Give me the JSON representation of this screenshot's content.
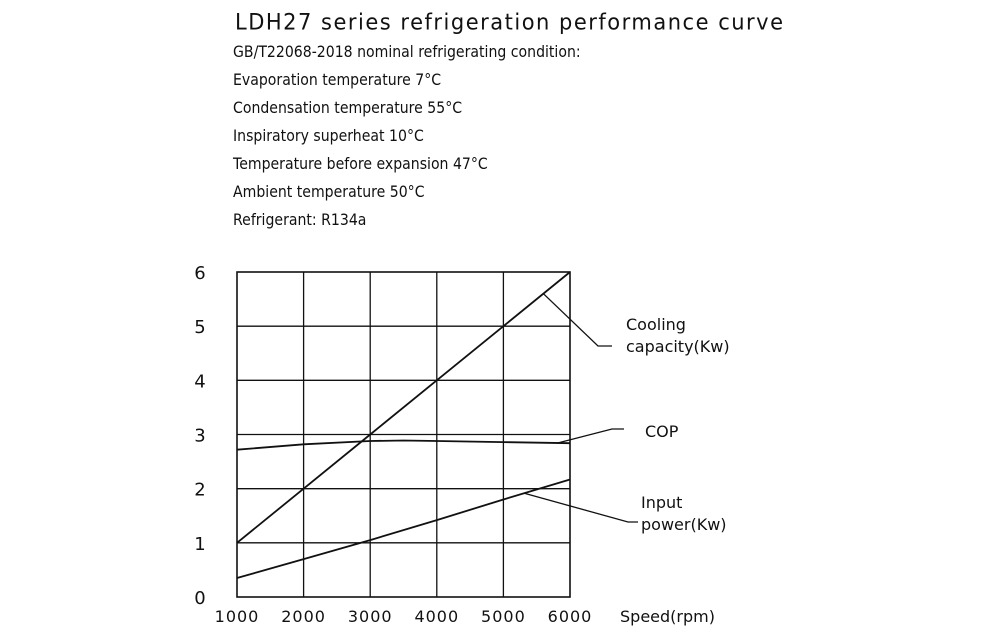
{
  "header": {
    "title": "LDH27 series refrigeration performance curve",
    "conditions": [
      "GB/T22068-2018 nominal refrigerating condition:",
      "Evaporation temperature 7°C",
      "Condensation  temperature 55°C",
      "Inspiratory superheat 10°C",
      "Temperature before expansion 47°C",
      "Ambient  temperature 50°C",
      "Refrigerant: R134a"
    ]
  },
  "chart_data": {
    "type": "line",
    "x_ticks": [
      "1000",
      "2000",
      "3000",
      "4000",
      "5000",
      "6000"
    ],
    "y_ticks": [
      "0",
      "1",
      "2",
      "3",
      "4",
      "5",
      "6"
    ],
    "xlabel": "Speed(rpm)",
    "xlim": [
      1000,
      6000
    ],
    "ylim": [
      0,
      6
    ],
    "grid": true,
    "series": [
      {
        "name": "Cooling capacity(Kw)",
        "label_lines": [
          "Cooling",
          "capacity(Kw)"
        ],
        "x": [
          1000,
          2000,
          3000,
          4000,
          5000,
          6000
        ],
        "y": [
          1.0,
          2.0,
          3.0,
          4.0,
          5.0,
          6.0
        ]
      },
      {
        "name": "COP",
        "label_lines": [
          "COP"
        ],
        "x": [
          1000,
          2000,
          3000,
          3500,
          4000,
          5000,
          6000
        ],
        "y": [
          2.72,
          2.82,
          2.88,
          2.89,
          2.88,
          2.86,
          2.84
        ]
      },
      {
        "name": "Input power(Kw)",
        "label_lines": [
          "Input",
          "power(Kw)"
        ],
        "x": [
          1000,
          2000,
          3000,
          4000,
          5000,
          6000
        ],
        "y": [
          0.35,
          0.7,
          1.05,
          1.42,
          1.8,
          2.17
        ]
      }
    ]
  }
}
